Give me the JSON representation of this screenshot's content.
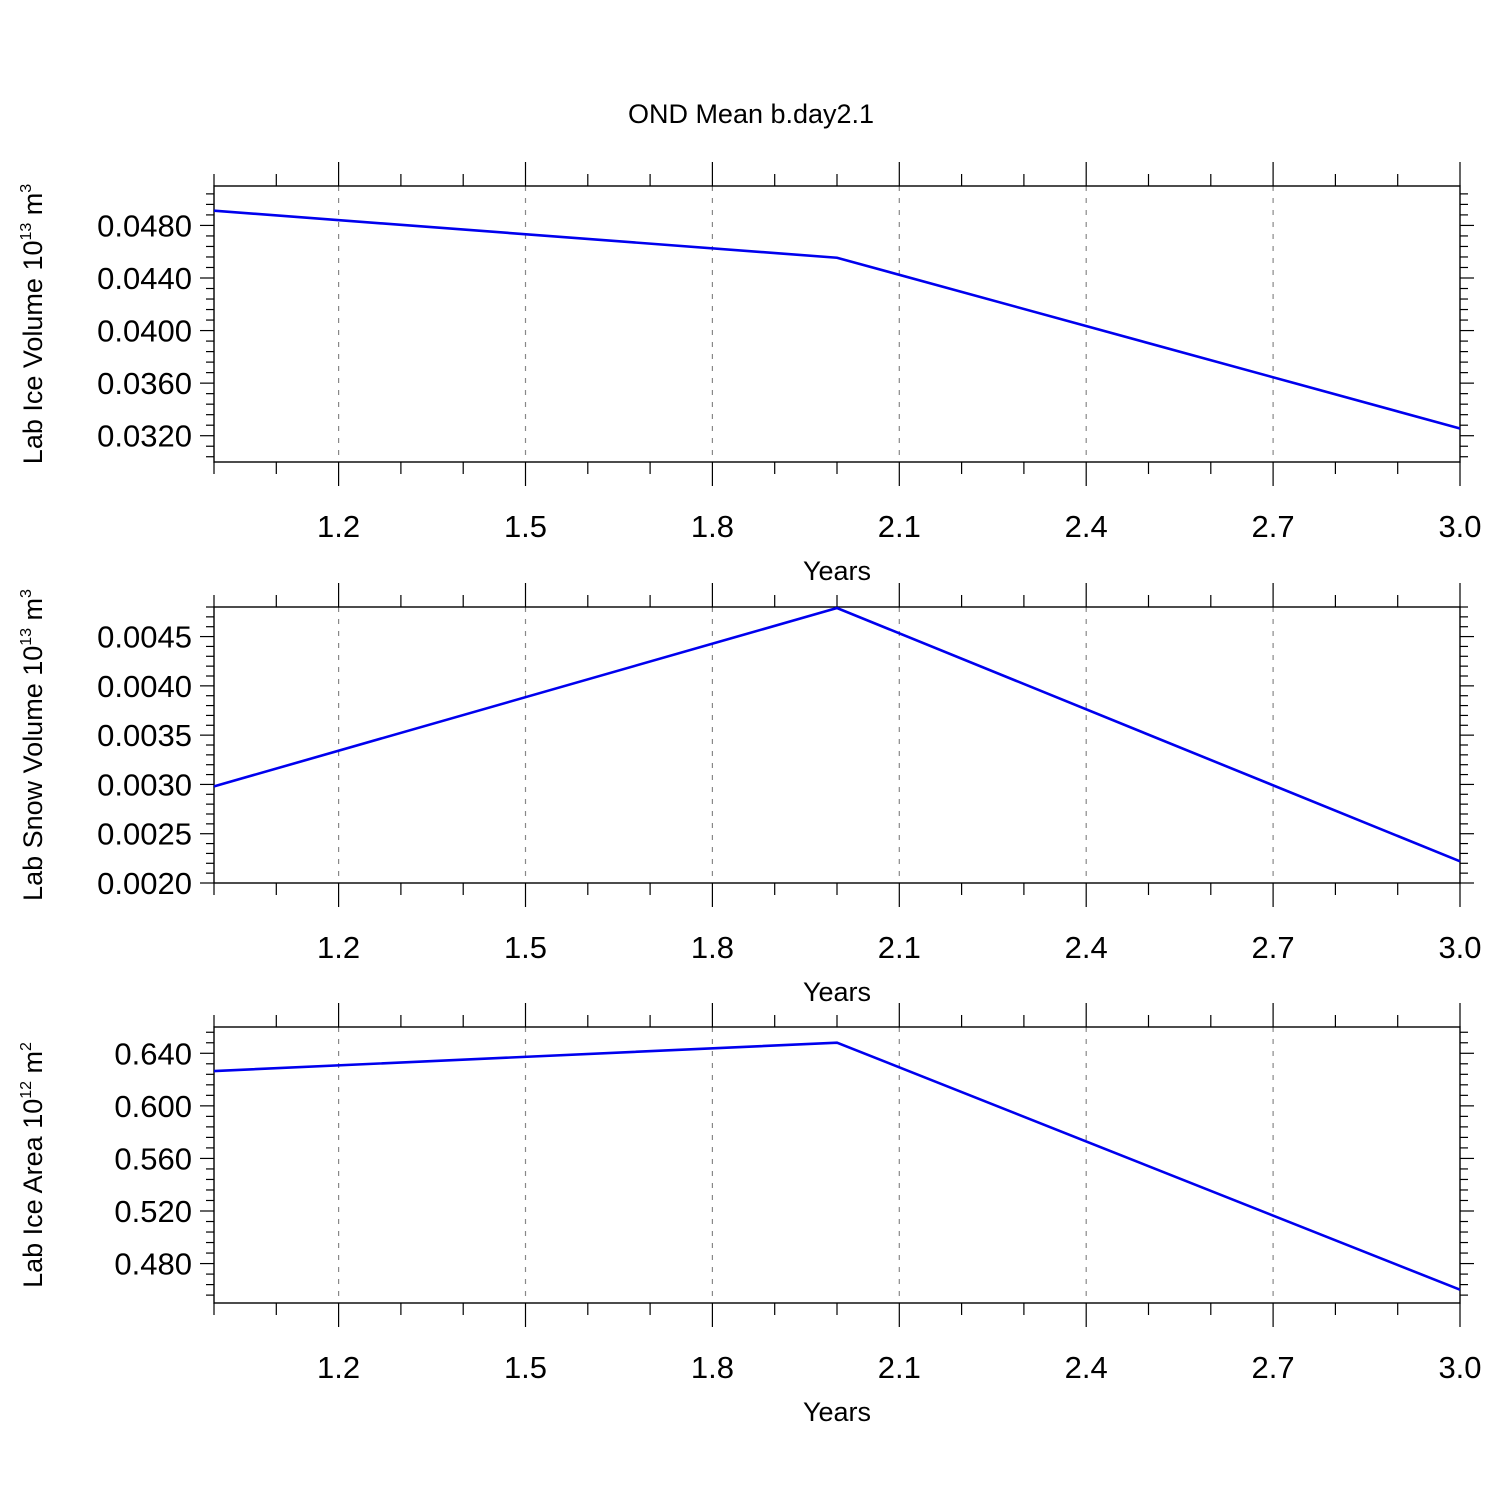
{
  "figure": {
    "title": "OND Mean b.day2.1"
  },
  "chart_data": [
    {
      "type": "line",
      "xlabel": "Years",
      "ylabel": {
        "prefix": "Lab Ice Volume 10",
        "exp": "13",
        "unit": " m",
        "unit_exp": "3"
      },
      "xlim": [
        1.0,
        3.0
      ],
      "ylim": [
        0.03,
        0.051
      ],
      "xticks": [
        1.2,
        1.5,
        1.8,
        2.1,
        2.4,
        2.7,
        3.0
      ],
      "xtick_labels": [
        "1.2",
        "1.5",
        "1.8",
        "2.1",
        "2.4",
        "2.7",
        "3.0"
      ],
      "yticks": [
        0.032,
        0.036,
        0.04,
        0.044,
        0.048
      ],
      "ytick_labels": [
        "0.0320",
        "0.0360",
        "0.0400",
        "0.0440",
        "0.0480"
      ],
      "yminor_step": 0.0008,
      "grid": "x-dashed",
      "series": [
        {
          "color": "#0000ee",
          "x": [
            1.0,
            2.0,
            3.0
          ],
          "y": [
            0.04912,
            0.04554,
            0.03255
          ]
        }
      ]
    },
    {
      "type": "line",
      "xlabel": "Years",
      "ylabel": {
        "prefix": "Lab Snow Volume 10",
        "exp": "13",
        "unit": " m",
        "unit_exp": "3"
      },
      "xlim": [
        1.0,
        3.0
      ],
      "ylim": [
        0.002,
        0.0048
      ],
      "xticks": [
        1.2,
        1.5,
        1.8,
        2.1,
        2.4,
        2.7,
        3.0
      ],
      "xtick_labels": [
        "1.2",
        "1.5",
        "1.8",
        "2.1",
        "2.4",
        "2.7",
        "3.0"
      ],
      "yticks": [
        0.002,
        0.0025,
        0.003,
        0.0035,
        0.004,
        0.0045
      ],
      "ytick_labels": [
        "0.0020",
        "0.0025",
        "0.0030",
        "0.0035",
        "0.0040",
        "0.0045"
      ],
      "yminor_step": 0.0001,
      "grid": "x-dashed",
      "series": [
        {
          "color": "#0000ee",
          "x": [
            1.0,
            2.0,
            3.0
          ],
          "y": [
            0.00298,
            0.00479,
            0.00222
          ]
        }
      ]
    },
    {
      "type": "line",
      "xlabel": "Years",
      "ylabel": {
        "prefix": "Lab Ice Area 10",
        "exp": "12",
        "unit": " m",
        "unit_exp": "2"
      },
      "xlim": [
        1.0,
        3.0
      ],
      "ylim": [
        0.45,
        0.66
      ],
      "xticks": [
        1.2,
        1.5,
        1.8,
        2.1,
        2.4,
        2.7,
        3.0
      ],
      "xtick_labels": [
        "1.2",
        "1.5",
        "1.8",
        "2.1",
        "2.4",
        "2.7",
        "3.0"
      ],
      "yticks": [
        0.48,
        0.52,
        0.56,
        0.6,
        0.64
      ],
      "ytick_labels": [
        "0.480",
        "0.520",
        "0.560",
        "0.600",
        "0.640"
      ],
      "yminor_step": 0.008,
      "grid": "x-dashed",
      "series": [
        {
          "color": "#0000ee",
          "x": [
            1.0,
            2.0,
            3.0
          ],
          "y": [
            0.6265,
            0.6481,
            0.4601
          ]
        }
      ]
    }
  ]
}
